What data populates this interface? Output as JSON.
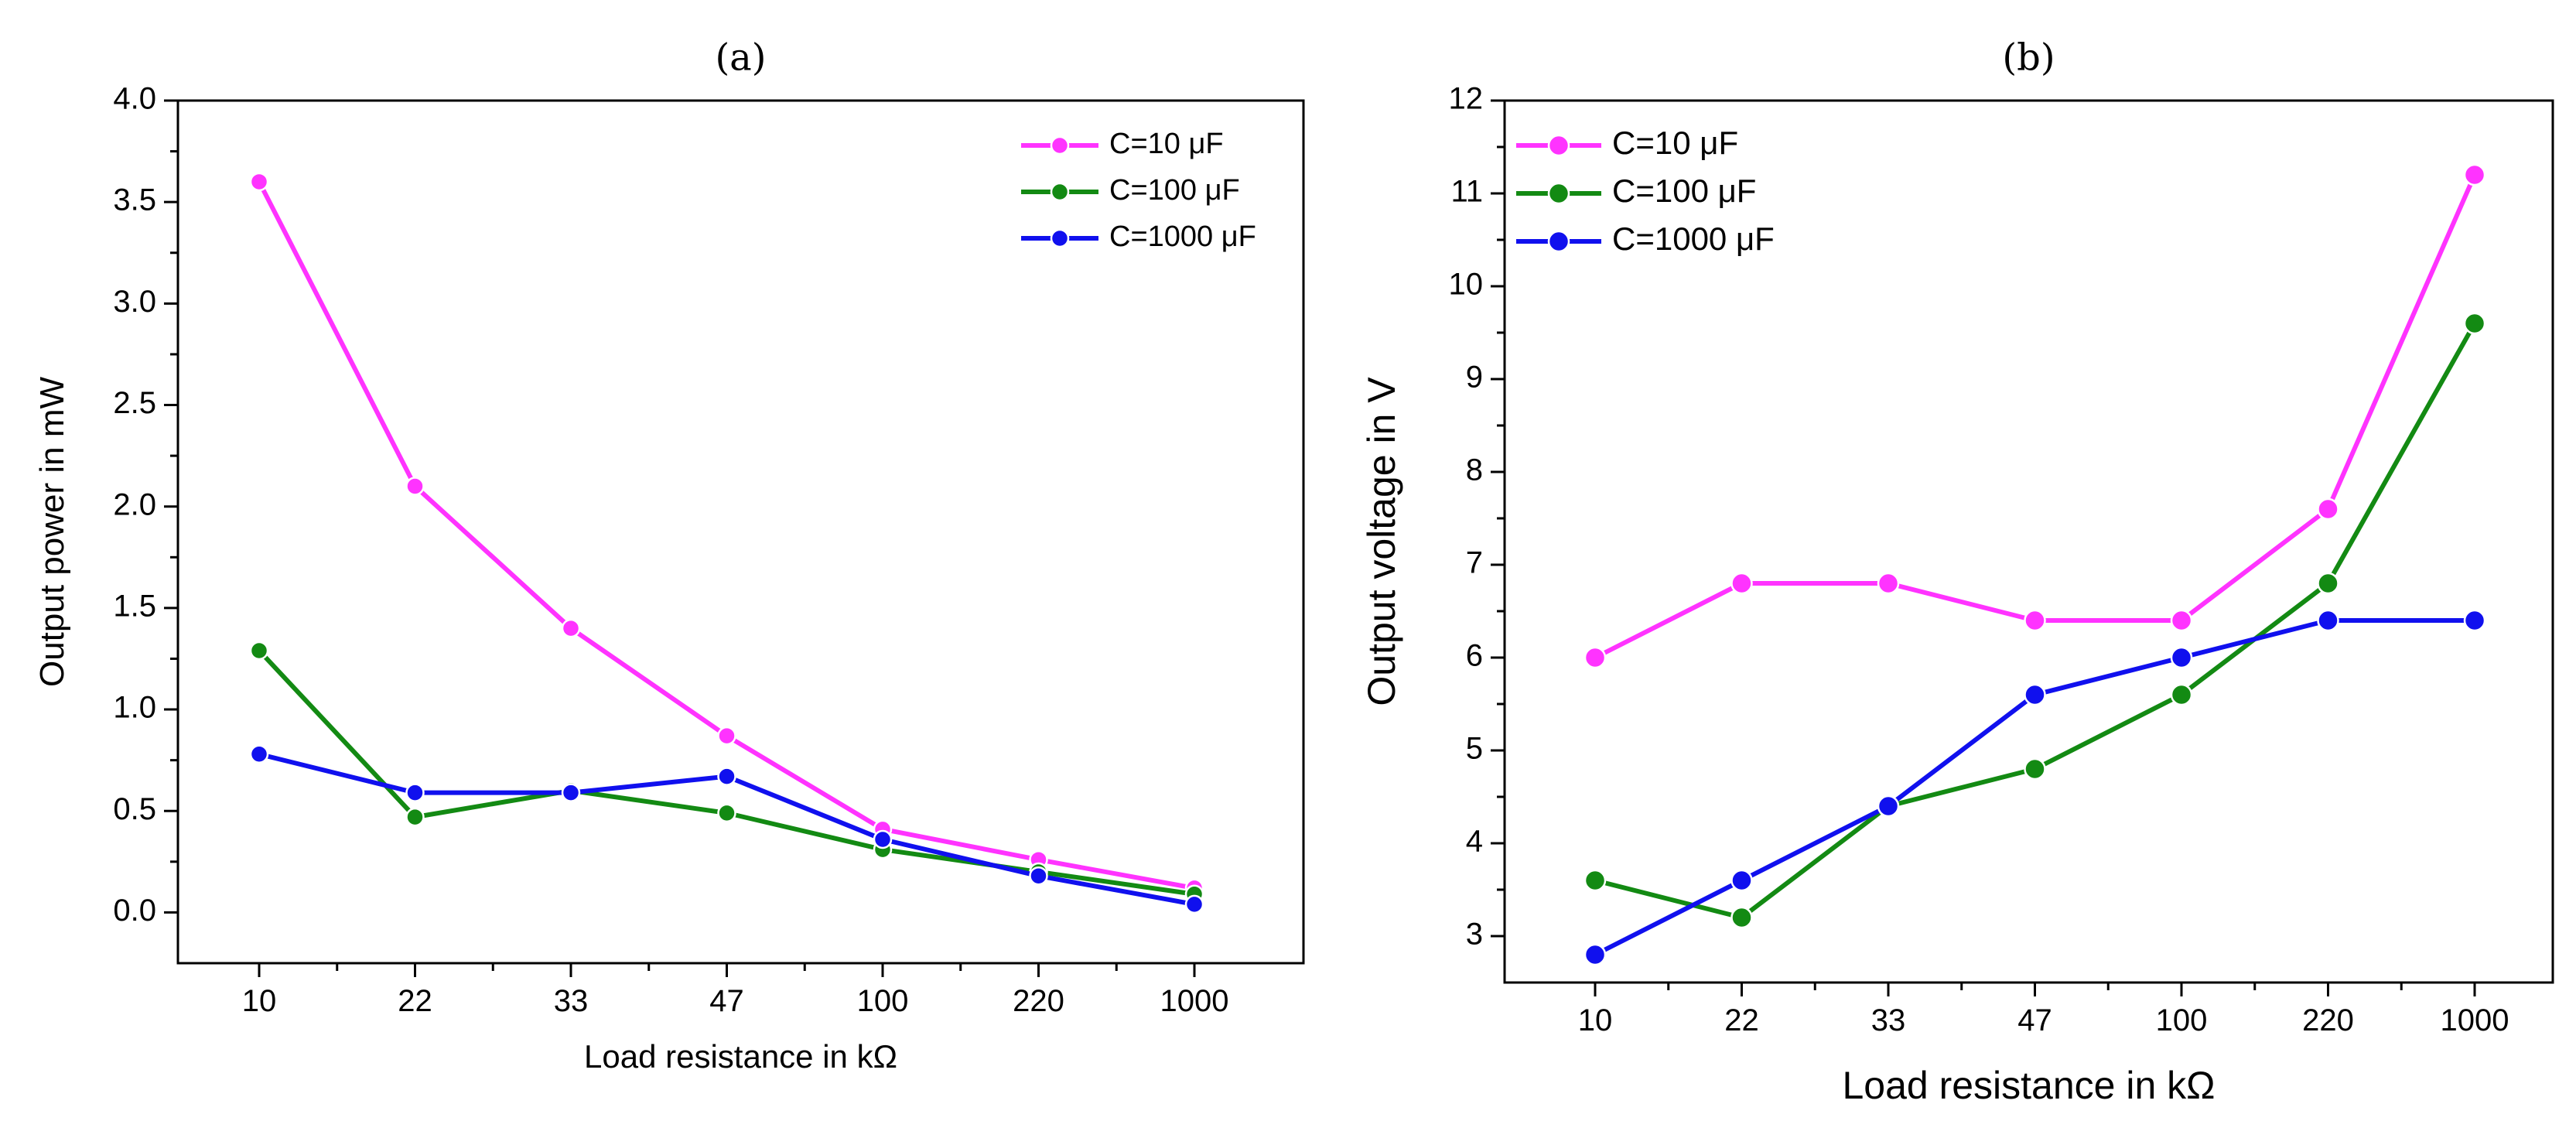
{
  "chart_data": [
    {
      "type": "line",
      "title": "(a)",
      "xlabel": "Load resistance in kΩ",
      "ylabel": "Output power in mW",
      "categories": [
        "10",
        "22",
        "33",
        "47",
        "100",
        "220",
        "1000"
      ],
      "ylim": [
        -0.25,
        4.0
      ],
      "yticks": [
        "0.0",
        "0.5",
        "1.0",
        "1.5",
        "2.0",
        "2.5",
        "3.0",
        "3.5",
        "4.0"
      ],
      "legend_position": "top-right",
      "series": [
        {
          "name": "C=10 μF",
          "color": "#ff33ff",
          "values": [
            3.6,
            2.1,
            1.4,
            0.87,
            0.41,
            0.26,
            0.12
          ]
        },
        {
          "name": "C=100 μF",
          "color": "#138a13",
          "values": [
            1.29,
            0.47,
            0.6,
            0.49,
            0.31,
            0.2,
            0.09
          ]
        },
        {
          "name": "C=1000 μF",
          "color": "#1010ee",
          "values": [
            0.78,
            0.59,
            0.59,
            0.67,
            0.36,
            0.18,
            0.04
          ]
        }
      ]
    },
    {
      "type": "line",
      "title": "(b)",
      "xlabel": "Load resistance in kΩ",
      "ylabel": "Output voltage in V",
      "categories": [
        "10",
        "22",
        "33",
        "47",
        "100",
        "220",
        "1000"
      ],
      "ylim": [
        2.5,
        12
      ],
      "yticks": [
        "3",
        "4",
        "5",
        "6",
        "7",
        "8",
        "9",
        "10",
        "11",
        "12"
      ],
      "legend_position": "top-left",
      "series": [
        {
          "name": "C=10 μF",
          "color": "#ff33ff",
          "values": [
            6.0,
            6.8,
            6.8,
            6.4,
            6.4,
            7.6,
            11.2
          ]
        },
        {
          "name": "C=100 μF",
          "color": "#138a13",
          "values": [
            3.6,
            3.2,
            4.4,
            4.8,
            5.6,
            6.8,
            9.6
          ]
        },
        {
          "name": "C=1000 μF",
          "color": "#1010ee",
          "values": [
            2.8,
            3.6,
            4.4,
            5.6,
            6.0,
            6.4,
            6.4
          ]
        }
      ]
    }
  ]
}
